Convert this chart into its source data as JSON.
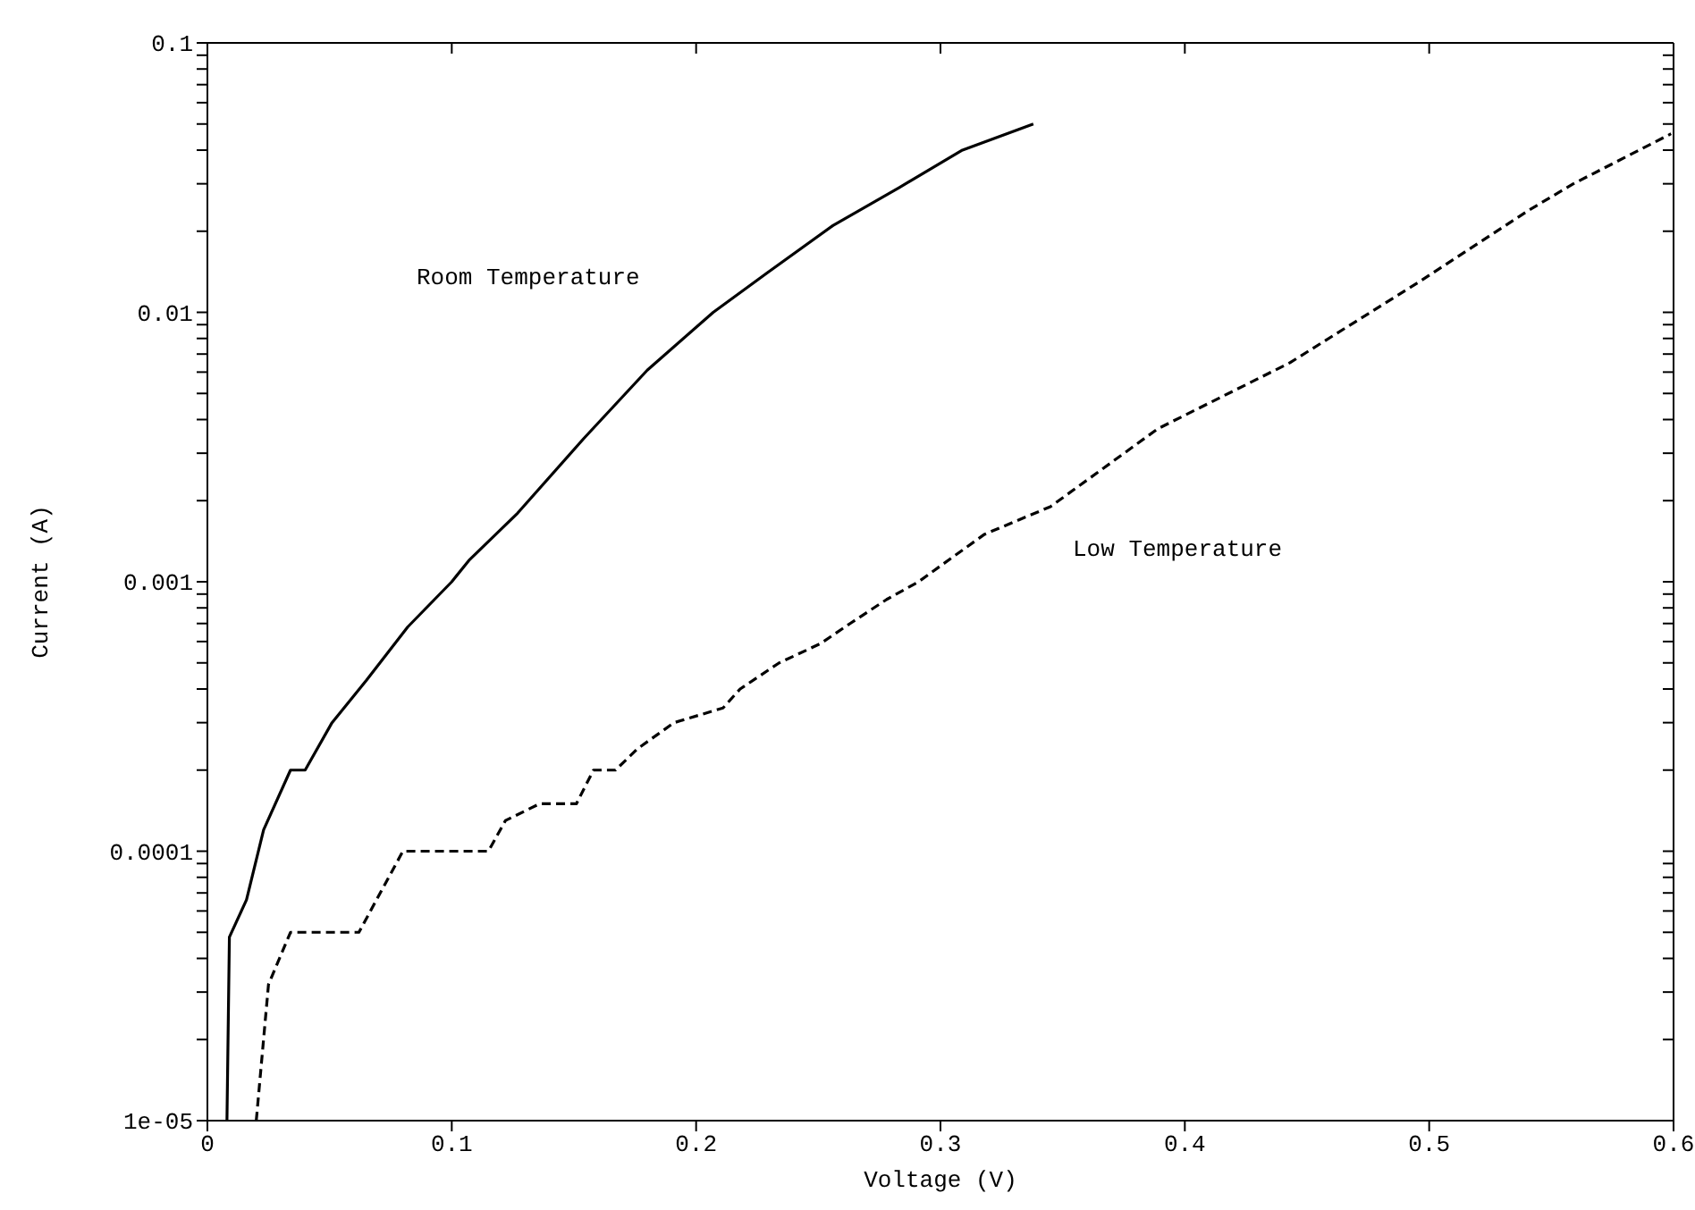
{
  "chart_data": {
    "type": "line",
    "xlabel": "Voltage (V)",
    "ylabel": "Current (A)",
    "log": "y",
    "marker": "none",
    "xlim": [
      0,
      0.6
    ],
    "xticks": [
      0,
      0.1,
      0.2,
      0.3,
      0.4,
      0.5,
      0.6
    ],
    "ylim": [
      1e-05,
      0.1
    ],
    "yticks": [
      {
        "value": 1e-05,
        "label": "1e-05"
      },
      {
        "value": 2e-05,
        "label": null
      },
      {
        "value": 3e-05,
        "label": null
      },
      {
        "value": 4e-05,
        "label": null
      },
      {
        "value": 5e-05,
        "label": null
      },
      {
        "value": 6e-05,
        "label": null
      },
      {
        "value": 7e-05,
        "label": null
      },
      {
        "value": 8e-05,
        "label": null
      },
      {
        "value": 9e-05,
        "label": null
      },
      {
        "value": 0.0001,
        "label": "0.0001"
      },
      {
        "value": 0.0002,
        "label": null
      },
      {
        "value": 0.0003,
        "label": null
      },
      {
        "value": 0.0004,
        "label": null
      },
      {
        "value": 0.0005,
        "label": null
      },
      {
        "value": 0.0006,
        "label": null
      },
      {
        "value": 0.0007,
        "label": null
      },
      {
        "value": 0.0008,
        "label": null
      },
      {
        "value": 0.0009,
        "label": null
      },
      0.001,
      {
        "value": 0.002,
        "label": null
      },
      {
        "value": 0.003,
        "label": null
      },
      {
        "value": 0.004,
        "label": null
      },
      {
        "value": 0.005,
        "label": null
      },
      {
        "value": 0.006,
        "label": null
      },
      {
        "value": 0.007,
        "label": null
      },
      {
        "value": 0.008,
        "label": null
      },
      {
        "value": 0.009,
        "label": null
      },
      0.01,
      {
        "value": 0.02,
        "label": null
      },
      {
        "value": 0.03,
        "label": null
      },
      {
        "value": 0.04,
        "label": null
      },
      {
        "value": 0.05,
        "label": null
      },
      {
        "value": 0.06,
        "label": null
      },
      {
        "value": 0.07,
        "label": null
      },
      {
        "value": 0.08,
        "label": null
      },
      {
        "value": 0.09,
        "label": null
      },
      0.1
    ],
    "series": [
      {
        "name": "Room Temperature",
        "color": "#000000",
        "line_style": "solid",
        "x": [
          0.008,
          0.009,
          0.016,
          0.023,
          0.034,
          0.04,
          0.051,
          0.065,
          0.082,
          0.1,
          0.107,
          0.127,
          0.154,
          0.18,
          0.207,
          0.229,
          0.256,
          0.283,
          0.309,
          0.338
        ],
        "values": [
          1e-05,
          4.8e-05,
          6.6e-05,
          0.00012,
          0.0002,
          0.0002,
          0.0003,
          0.00043,
          0.00068,
          0.001,
          0.0012,
          0.0018,
          0.0034,
          0.0061,
          0.01,
          0.014,
          0.021,
          0.029,
          0.04,
          0.05
        ]
      },
      {
        "name": "Low Temperature",
        "color": "#000000",
        "line_style": "dashed",
        "x": [
          0.02,
          0.025,
          0.034,
          0.062,
          0.08,
          0.115,
          0.122,
          0.136,
          0.151,
          0.158,
          0.167,
          0.176,
          0.191,
          0.211,
          0.218,
          0.234,
          0.251,
          0.263,
          0.278,
          0.291,
          0.318,
          0.345,
          0.389,
          0.443,
          0.496,
          0.541,
          0.559,
          0.599
        ],
        "values": [
          1e-05,
          3.2e-05,
          5e-05,
          5e-05,
          0.0001,
          0.0001,
          0.00013,
          0.00015,
          0.00015,
          0.0002,
          0.0002,
          0.00024,
          0.0003,
          0.00034,
          0.0004,
          0.0005,
          0.00059,
          0.0007,
          0.00086,
          0.001,
          0.0015,
          0.0019,
          0.0037,
          0.0065,
          0.013,
          0.024,
          0.03,
          0.046
        ]
      }
    ]
  }
}
